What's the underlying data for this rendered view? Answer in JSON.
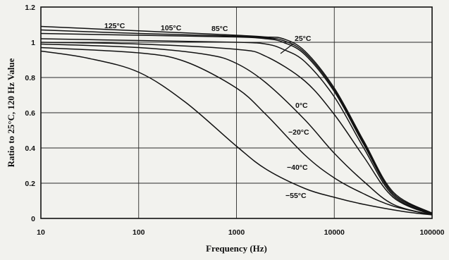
{
  "chart_data": {
    "type": "line",
    "xlabel": "Frequency (Hz)",
    "ylabel": "Ratio to 25°C, 120 Hz Value",
    "xscale": "log",
    "xlim": [
      10,
      100000
    ],
    "ylim": [
      0,
      1.2
    ],
    "grid": true,
    "legend": "inline labels on curves",
    "x_ticks": [
      {
        "value": 10,
        "label": "10"
      },
      {
        "value": 100,
        "label": "100"
      },
      {
        "value": 1000,
        "label": "1000"
      },
      {
        "value": 10000,
        "label": "10000"
      },
      {
        "value": 100000,
        "label": "100000"
      }
    ],
    "y_ticks": [
      {
        "value": 0,
        "label": "0"
      },
      {
        "value": 0.2,
        "label": "0.2"
      },
      {
        "value": 0.4,
        "label": "0.4"
      },
      {
        "value": 0.6,
        "label": "0.6"
      },
      {
        "value": 0.8,
        "label": "0.8"
      },
      {
        "value": 1,
        "label": "1"
      },
      {
        "value": 1.2,
        "label": "1.2"
      }
    ],
    "series": [
      {
        "name": "125°C",
        "x": [
          10,
          100,
          1000,
          2000,
          3000,
          5000,
          10000,
          20000,
          40000,
          100000
        ],
        "y": [
          1.09,
          1.065,
          1.04,
          1.03,
          1.02,
          0.95,
          0.74,
          0.44,
          0.15,
          0.03
        ]
      },
      {
        "name": "105°C",
        "x": [
          10,
          100,
          1000,
          2000,
          3000,
          5000,
          10000,
          20000,
          40000,
          100000
        ],
        "y": [
          1.07,
          1.05,
          1.035,
          1.025,
          1.01,
          0.94,
          0.73,
          0.43,
          0.14,
          0.03
        ]
      },
      {
        "name": "85°C",
        "x": [
          10,
          100,
          1000,
          2000,
          3000,
          5000,
          10000,
          20000,
          40000,
          100000
        ],
        "y": [
          1.05,
          1.04,
          1.03,
          1.02,
          1.0,
          0.93,
          0.72,
          0.42,
          0.14,
          0.03
        ]
      },
      {
        "name": "25°C",
        "x": [
          10,
          100,
          1000,
          2000,
          3000,
          5000,
          10000,
          20000,
          40000,
          100000
        ],
        "y": [
          1.02,
          1.01,
          1.0,
          0.99,
          0.96,
          0.89,
          0.69,
          0.4,
          0.13,
          0.025
        ]
      },
      {
        "name": "0°C",
        "x": [
          10,
          100,
          1000,
          2000,
          5000,
          10000,
          20000,
          40000,
          100000
        ],
        "y": [
          1.0,
          0.99,
          0.96,
          0.92,
          0.78,
          0.59,
          0.35,
          0.12,
          0.02
        ]
      },
      {
        "name": "−20°C",
        "x": [
          10,
          100,
          500,
          1000,
          2000,
          5000,
          10000,
          20000,
          40000,
          100000
        ],
        "y": [
          0.99,
          0.97,
          0.93,
          0.88,
          0.77,
          0.56,
          0.37,
          0.21,
          0.08,
          0.02
        ]
      },
      {
        "name": "−40°C",
        "x": [
          10,
          100,
          300,
          1000,
          2000,
          5000,
          10000,
          20000,
          40000,
          100000
        ],
        "y": [
          0.97,
          0.94,
          0.89,
          0.74,
          0.59,
          0.36,
          0.23,
          0.14,
          0.07,
          0.02
        ]
      },
      {
        "name": "−55°C",
        "x": [
          10,
          30,
          100,
          300,
          1000,
          2000,
          5000,
          10000,
          20000,
          50000,
          100000
        ],
        "y": [
          0.95,
          0.91,
          0.83,
          0.66,
          0.41,
          0.28,
          0.17,
          0.12,
          0.08,
          0.04,
          0.02
        ]
      }
    ]
  }
}
